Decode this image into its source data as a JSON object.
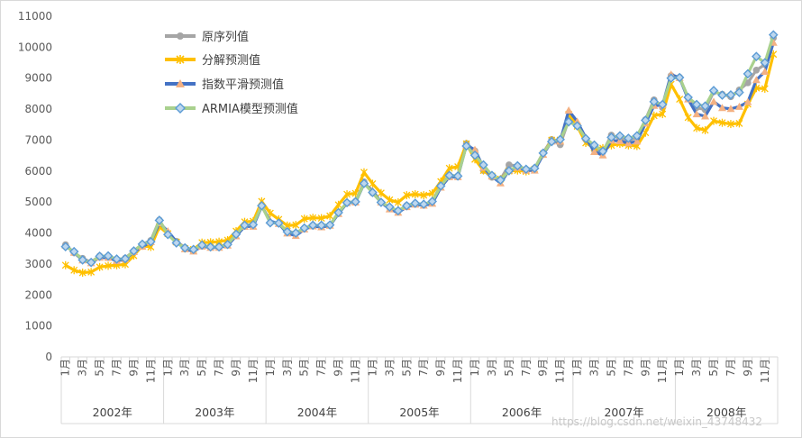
{
  "chart_data": {
    "type": "line",
    "title": "",
    "xlabel": "",
    "ylabel": "",
    "ylim": [
      0,
      11000
    ],
    "y_ticks": [
      0,
      1000,
      2000,
      3000,
      4000,
      5000,
      6000,
      7000,
      8000,
      9000,
      10000,
      11000
    ],
    "years": [
      "2002年",
      "2003年",
      "2004年",
      "2005年",
      "2006年",
      "2007年",
      "2008年"
    ],
    "month_labels": [
      "1月",
      "3月",
      "5月",
      "7月",
      "9月",
      "11月"
    ],
    "legend_position": "top-left",
    "series": [
      {
        "name": "原序列值",
        "color": "#a5a5a5",
        "marker": "circle",
        "values": [
          3620,
          3360,
          3180,
          3060,
          3260,
          3230,
          3130,
          3190,
          3420,
          3640,
          3760,
          4420,
          3960,
          3730,
          3530,
          3460,
          3600,
          3540,
          3560,
          3640,
          3960,
          4260,
          4250,
          4900,
          4330,
          4310,
          4060,
          4000,
          4160,
          4250,
          4250,
          4260,
          4660,
          4980,
          5020,
          5650,
          5290,
          4990,
          4820,
          4710,
          4890,
          4960,
          4920,
          5010,
          5560,
          5870,
          5840,
          6890,
          6650,
          6020,
          5800,
          5730,
          6200,
          6170,
          6060,
          6090,
          6590,
          7020,
          6850,
          7650,
          7450,
          7020,
          6680,
          6620,
          7160,
          7060,
          6980,
          7090,
          7660,
          8300,
          8050,
          9080,
          9030,
          8370,
          8050,
          7980,
          8560,
          8480,
          8400,
          8620,
          8850,
          9260,
          9440,
          10300
        ],
        "labels_visible": false
      },
      {
        "name": "分解预测值",
        "color": "#ffc000",
        "marker": "star",
        "values": [
          2960,
          2800,
          2720,
          2740,
          2900,
          2940,
          2960,
          2990,
          3270,
          3590,
          3550,
          4200,
          3980,
          3710,
          3500,
          3470,
          3690,
          3700,
          3720,
          3770,
          4060,
          4360,
          4380,
          5020,
          4640,
          4440,
          4240,
          4260,
          4460,
          4490,
          4480,
          4550,
          4910,
          5250,
          5280,
          5960,
          5590,
          5290,
          5070,
          4990,
          5220,
          5250,
          5220,
          5280,
          5660,
          6090,
          6140,
          6880,
          6380,
          6020,
          5840,
          5740,
          6000,
          6020,
          5990,
          6060,
          6550,
          7000,
          7000,
          7830,
          7450,
          6910,
          6750,
          6740,
          6830,
          6880,
          6830,
          6810,
          7240,
          7790,
          7840,
          8800,
          8320,
          7730,
          7390,
          7320,
          7620,
          7560,
          7520,
          7540,
          8160,
          8680,
          8660,
          9770
        ],
        "labels_visible": false
      },
      {
        "name": "指数平滑预测值",
        "color": "#4472c4",
        "marker": "triangle",
        "values": [
          3600,
          3370,
          3120,
          3030,
          3210,
          3200,
          3100,
          3150,
          3390,
          3560,
          3710,
          4320,
          4060,
          3720,
          3480,
          3410,
          3570,
          3530,
          3530,
          3600,
          3900,
          4210,
          4210,
          4860,
          4390,
          4300,
          3990,
          3910,
          4120,
          4220,
          4190,
          4240,
          4620,
          4970,
          4990,
          5590,
          5370,
          4990,
          4770,
          4660,
          4840,
          4920,
          4890,
          4950,
          5470,
          5810,
          5810,
          6830,
          6690,
          6110,
          5830,
          5610,
          6020,
          6110,
          6020,
          6020,
          6530,
          6960,
          6960,
          7960,
          7600,
          7080,
          6620,
          6510,
          6990,
          6970,
          6900,
          6960,
          7540,
          8110,
          8130,
          9120,
          9010,
          8320,
          7840,
          7770,
          8240,
          8040,
          8010,
          8080,
          8230,
          8940,
          9210,
          10150
        ],
        "labels_visible": false
      },
      {
        "name": "ARMIA模型预测值",
        "color": "#a9d18e",
        "marker": "diamond",
        "values": [
          3560,
          3400,
          3130,
          3050,
          3250,
          3260,
          3160,
          3170,
          3420,
          3640,
          3720,
          4410,
          3950,
          3680,
          3520,
          3470,
          3610,
          3550,
          3550,
          3630,
          3960,
          4250,
          4270,
          4880,
          4330,
          4320,
          4040,
          4000,
          4160,
          4250,
          4250,
          4260,
          4660,
          4980,
          5010,
          5600,
          5310,
          4990,
          4840,
          4720,
          4880,
          4960,
          4930,
          5020,
          5520,
          5860,
          5840,
          6810,
          6510,
          6200,
          5860,
          5710,
          6010,
          6170,
          6060,
          6090,
          6580,
          6950,
          7020,
          7590,
          7460,
          7050,
          6840,
          6640,
          7090,
          7140,
          7060,
          7140,
          7640,
          8240,
          8150,
          9000,
          9020,
          8380,
          8150,
          8100,
          8600,
          8450,
          8460,
          8540,
          9140,
          9700,
          9500,
          10400
        ],
        "labels_visible": false
      }
    ]
  },
  "watermark": "https://blog.csdn.net/weixin_43748432"
}
